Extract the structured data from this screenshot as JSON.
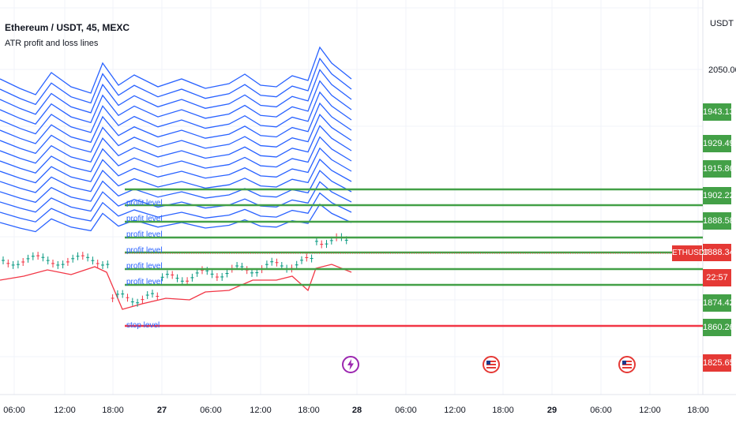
{
  "header": {
    "title": "Ethereum / USDT, 45, MEXC",
    "indicator": "ATR profit and loss lines"
  },
  "price_axis": {
    "unit": "USDT",
    "top_label": "2050.00",
    "badges": [
      {
        "value": "1943.13",
        "color": "#43a047"
      },
      {
        "value": "1929.49",
        "color": "#43a047"
      },
      {
        "value": "1915.86",
        "color": "#43a047"
      },
      {
        "value": "1902.22",
        "color": "#43a047"
      },
      {
        "value": "1888.58",
        "color": "#43a047"
      },
      {
        "value": "1888.34",
        "color": "#e53935"
      },
      {
        "value": "22:57",
        "color": "#e53935"
      },
      {
        "value": "1874.42",
        "color": "#43a047"
      },
      {
        "value": "1860.26",
        "color": "#43a047"
      },
      {
        "value": "1825.65",
        "color": "#e53935"
      }
    ],
    "symbol": "ETHUSDT"
  },
  "time_axis": [
    "06:00",
    "12:00",
    "18:00",
    "27",
    "06:00",
    "12:00",
    "18:00",
    "28",
    "06:00",
    "12:00",
    "18:00",
    "29",
    "06:00",
    "12:00",
    "18:00"
  ],
  "level_labels": [
    "profit level",
    "profit level",
    "profit level",
    "profit level",
    "profit level",
    "profit level",
    "stop level"
  ],
  "events": [
    "lightning-icon",
    "us-flag-icon",
    "us-flag-icon"
  ],
  "colors": {
    "profit_line": "#43a047",
    "stop_line": "#f23645",
    "atr_upper": "#2962ff",
    "atr_lower": "#f23645",
    "candle_up": "#089981",
    "candle_down": "#f23645"
  },
  "chart_data": {
    "type": "line",
    "title": "Ethereum / USDT, 45, MEXC",
    "ylabel": "USDT",
    "x": [
      "06:00",
      "12:00",
      "18:00",
      "27",
      "06:00",
      "12:00",
      "18:00",
      "28"
    ],
    "profit_levels": [
      1929.49,
      1915.86,
      1902.22,
      1888.58,
      1888.34,
      1874.42
    ],
    "stop_level": 1860.26,
    "last_price": 1888.34,
    "atr_upper_band_top": [
      1960,
      1948,
      1955,
      1975,
      1945,
      1965,
      1980,
      1950,
      1965,
      1958,
      1970,
      2040
    ],
    "atr_lower_band": [
      1888,
      1885,
      1890,
      1893,
      1868,
      1872,
      1878,
      1876,
      1880,
      1884,
      1878,
      1888
    ],
    "grid": true
  }
}
